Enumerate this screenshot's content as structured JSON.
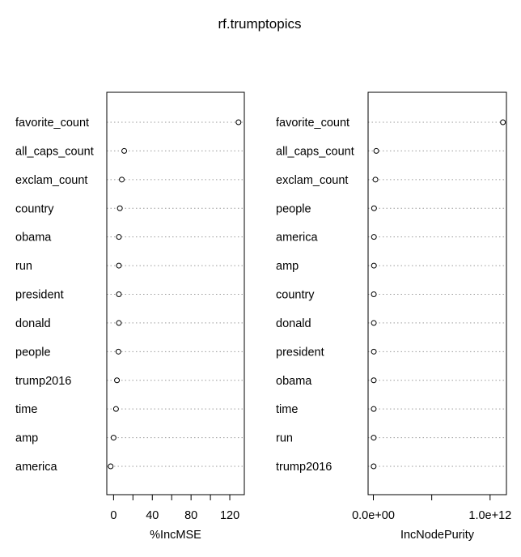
{
  "title": "rf.trumptopics",
  "chart_data": [
    {
      "type": "scatter",
      "style": "dotchart",
      "xlabel": "%IncMSE",
      "xlim": [
        -7,
        135
      ],
      "xticks": [
        0,
        40,
        80,
        120
      ],
      "xtick_minor": [
        20,
        60,
        100
      ],
      "categories": [
        "favorite_count",
        "all_caps_count",
        "exclam_count",
        "country",
        "obama",
        "run",
        "president",
        "donald",
        "people",
        "trump2016",
        "time",
        "amp",
        "america"
      ],
      "values": [
        129,
        11,
        8.5,
        6.5,
        5.5,
        5.5,
        5.5,
        5.5,
        5,
        3.5,
        2.5,
        0,
        -3
      ],
      "grid": true,
      "gridline_style": "dotted"
    },
    {
      "type": "scatter",
      "style": "dotchart",
      "xlabel": "IncNodePurity",
      "xlim": [
        -45000000000.0,
        1140000000000.0
      ],
      "xticks": [
        0,
        1000000000000
      ],
      "xtick_labels": [
        "0.0e+00",
        "1.0e+12"
      ],
      "xtick_minor": [
        500000000000
      ],
      "categories": [
        "favorite_count",
        "all_caps_count",
        "exclam_count",
        "people",
        "america",
        "amp",
        "country",
        "donald",
        "president",
        "obama",
        "time",
        "run",
        "trump2016"
      ],
      "values": [
        1110000000000,
        25000000000,
        18000000000,
        6000000000,
        5000000000,
        5000000000,
        4000000000,
        4000000000,
        4000000000,
        3500000000,
        3000000000,
        3000000000,
        2500000000
      ],
      "grid": true,
      "gridline_style": "dotted"
    }
  ]
}
